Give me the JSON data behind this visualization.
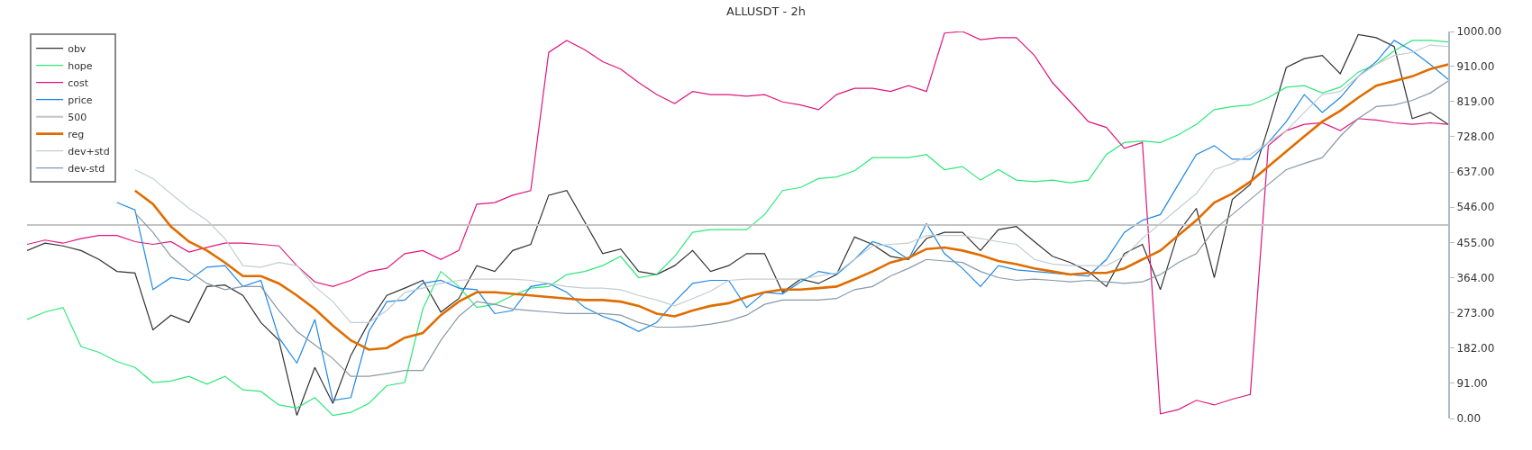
{
  "chart_data": {
    "type": "line",
    "title": "ALLUSDT - 2h",
    "categories": [
      null,
      null,
      null,
      null,
      null,
      null,
      null,
      null,
      null,
      null,
      null,
      null,
      null,
      null,
      null,
      null,
      null,
      null,
      null,
      null,
      null,
      null,
      null,
      null,
      null,
      null,
      null,
      null,
      null,
      null,
      null,
      null,
      null,
      null,
      null,
      null,
      null,
      null,
      null,
      null,
      null,
      null,
      null,
      null,
      null,
      null,
      null,
      null,
      null,
      null,
      null,
      null,
      null,
      null,
      null,
      null,
      null,
      null,
      null,
      null,
      null,
      null,
      null,
      null,
      null,
      null,
      null,
      null,
      null,
      null,
      null,
      null,
      null,
      null,
      null,
      null,
      null,
      null,
      null,
      null
    ],
    "series": [
      {
        "name": "obv",
        "color": "#333333",
        "values": [
          434,
          453,
          446,
          434,
          411,
          380,
          376,
          229,
          267,
          248,
          341,
          345,
          318,
          248,
          202,
          8,
          132,
          39,
          163,
          248,
          318,
          337,
          357,
          275,
          310,
          395,
          380,
          434,
          450,
          577,
          589,
          508,
          426,
          438,
          380,
          372,
          395,
          434,
          380,
          395,
          426,
          426,
          326,
          360,
          349,
          372,
          469,
          450,
          419,
          411,
          465,
          481,
          481,
          434,
          488,
          496,
          457,
          419,
          403,
          380,
          341,
          426,
          450,
          333,
          481,
          543,
          364,
          566,
          605,
          752,
          907,
          930,
          938,
          891,
          992,
          984,
          961,
          775,
          791,
          760
        ]
      },
      {
        "name": "hope",
        "color": "#2ee87a",
        "values": [
          256,
          275,
          287,
          186,
          171,
          147,
          132,
          93,
          97,
          109,
          89,
          109,
          74,
          70,
          35,
          27,
          54,
          8,
          16,
          39,
          85,
          93,
          283,
          380,
          341,
          287,
          295,
          318,
          337,
          341,
          372,
          380,
          395,
          419,
          364,
          372,
          419,
          481,
          488,
          488,
          488,
          527,
          589,
          597,
          620,
          624,
          640,
          674,
          674,
          674,
          682,
          643,
          651,
          616,
          643,
          616,
          612,
          616,
          609,
          616,
          682,
          713,
          717,
          713,
          733,
          760,
          798,
          806,
          810,
          829,
          856,
          860,
          841,
          856,
          895,
          915,
          950,
          977,
          977,
          973
        ]
      },
      {
        "name": "cost",
        "color": "#e0157f",
        "values": [
          450,
          461,
          453,
          465,
          473,
          473,
          457,
          450,
          457,
          430,
          442,
          453,
          453,
          450,
          446,
          395,
          353,
          341,
          357,
          380,
          388,
          426,
          434,
          411,
          434,
          554,
          558,
          577,
          589,
          946,
          977,
          953,
          922,
          903,
          868,
          837,
          814,
          845,
          837,
          837,
          833,
          837,
          818,
          810,
          798,
          837,
          853,
          853,
          845,
          860,
          845,
          996,
          1000,
          979,
          984,
          984,
          938,
          868,
          818,
          767,
          752,
          698,
          713,
          12,
          23,
          47,
          35,
          50,
          62,
          705,
          744,
          760,
          764,
          744,
          775,
          771,
          764,
          760,
          764,
          760
        ]
      },
      {
        "name": "price",
        "color": "#1e88e5",
        "values": [
          null,
          null,
          null,
          null,
          null,
          558,
          539,
          333,
          364,
          357,
          391,
          395,
          341,
          357,
          209,
          143,
          256,
          47,
          54,
          225,
          302,
          306,
          349,
          357,
          337,
          333,
          271,
          279,
          341,
          349,
          326,
          287,
          264,
          248,
          225,
          248,
          302,
          349,
          357,
          357,
          287,
          326,
          322,
          353,
          380,
          372,
          411,
          457,
          442,
          411,
          504,
          426,
          388,
          341,
          395,
          384,
          380,
          376,
          372,
          368,
          411,
          481,
          512,
          527,
          605,
          682,
          705,
          670,
          670,
          713,
          767,
          837,
          791,
          829,
          884,
          922,
          977,
          950,
          915,
          876
        ]
      },
      {
        "name": "500",
        "color": "#c4c4c4",
        "values": [
          500,
          500,
          500,
          500,
          500,
          500,
          500,
          500,
          500,
          500,
          500,
          500,
          500,
          500,
          500,
          500,
          500,
          500,
          500,
          500,
          500,
          500,
          500,
          500,
          500,
          500,
          500,
          500,
          500,
          500,
          500,
          500,
          500,
          500,
          500,
          500,
          500,
          500,
          500,
          500,
          500,
          500,
          500,
          500,
          500,
          500,
          500,
          500,
          500,
          500,
          500,
          500,
          500,
          500,
          500,
          500,
          500,
          500,
          500,
          500,
          500,
          500,
          500,
          500,
          500,
          500,
          500,
          500,
          500,
          500,
          500,
          500,
          500,
          500,
          500,
          500,
          500,
          500,
          500,
          500
        ]
      },
      {
        "name": "reg",
        "color": "#e06c00",
        "values": [
          null,
          null,
          null,
          null,
          null,
          null,
          589,
          554,
          496,
          457,
          434,
          403,
          368,
          368,
          349,
          318,
          283,
          240,
          202,
          178,
          182,
          209,
          221,
          267,
          302,
          326,
          326,
          322,
          318,
          314,
          310,
          306,
          306,
          302,
          291,
          271,
          264,
          279,
          291,
          298,
          314,
          326,
          333,
          333,
          337,
          341,
          360,
          380,
          403,
          415,
          438,
          442,
          434,
          422,
          407,
          399,
          388,
          380,
          372,
          376,
          376,
          388,
          411,
          434,
          473,
          512,
          558,
          581,
          612,
          651,
          690,
          729,
          767,
          795,
          829,
          860,
          872,
          884,
          903,
          915
        ]
      },
      {
        "name": "dev+std",
        "color": "#c3ccd2",
        "values": [
          null,
          null,
          null,
          null,
          null,
          null,
          643,
          620,
          581,
          543,
          512,
          465,
          395,
          391,
          403,
          395,
          341,
          302,
          248,
          248,
          279,
          326,
          337,
          349,
          357,
          360,
          360,
          360,
          357,
          349,
          341,
          337,
          337,
          333,
          318,
          306,
          291,
          310,
          329,
          357,
          360,
          360,
          360,
          360,
          368,
          376,
          411,
          446,
          450,
          453,
          473,
          473,
          473,
          465,
          457,
          450,
          411,
          399,
          395,
          395,
          395,
          419,
          465,
          504,
          543,
          581,
          643,
          659,
          682,
          713,
          744,
          791,
          837,
          845,
          884,
          915,
          938,
          946,
          965,
          961
        ]
      },
      {
        "name": "dev-std",
        "color": "#8899a6",
        "values": [
          null,
          null,
          null,
          null,
          null,
          null,
          531,
          481,
          419,
          380,
          349,
          333,
          341,
          341,
          279,
          225,
          190,
          155,
          109,
          109,
          116,
          124,
          124,
          202,
          264,
          302,
          295,
          283,
          279,
          275,
          271,
          271,
          271,
          267,
          248,
          236,
          236,
          238,
          244,
          252,
          267,
          295,
          306,
          306,
          306,
          310,
          333,
          341,
          368,
          388,
          411,
          407,
          403,
          380,
          364,
          357,
          360,
          357,
          353,
          357,
          353,
          349,
          353,
          372,
          403,
          426,
          488,
          527,
          566,
          605,
          643,
          659,
          674,
          729,
          775,
          806,
          810,
          822,
          841,
          872
        ]
      }
    ],
    "ylim": [
      0,
      1000
    ],
    "yticks": [
      {
        "value": 0,
        "label": "0.00"
      },
      {
        "value": 91,
        "label": "91.00"
      },
      {
        "value": 182,
        "label": "182.00"
      },
      {
        "value": 273,
        "label": "273.00"
      },
      {
        "value": 364,
        "label": "364.00"
      },
      {
        "value": 455,
        "label": "455.00"
      },
      {
        "value": 546,
        "label": "546.00"
      },
      {
        "value": 637,
        "label": "637.00"
      },
      {
        "value": 728,
        "label": "728.00"
      },
      {
        "value": 819,
        "label": "819.00"
      },
      {
        "value": 910,
        "label": "910.00"
      },
      {
        "value": 1000,
        "label": "1000.00"
      }
    ],
    "legend": "top left",
    "tick_labels": "y"
  }
}
